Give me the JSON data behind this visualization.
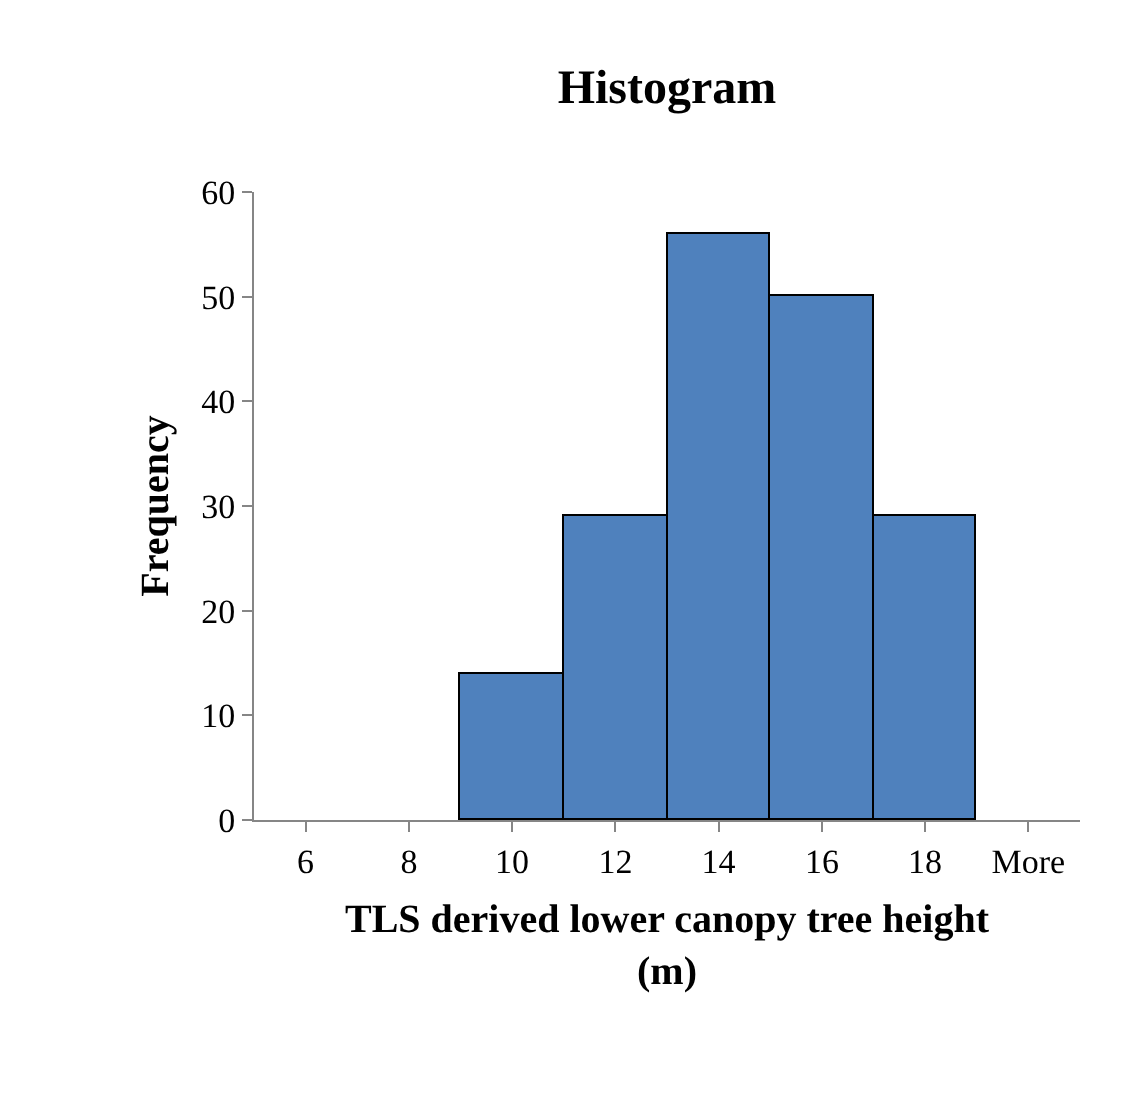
{
  "chart_data": {
    "type": "bar",
    "title": "Histogram",
    "xlabel": "TLS derived lower canopy tree height (m)",
    "ylabel": "Frequency",
    "categories": [
      "6",
      "8",
      "10",
      "12",
      "14",
      "16",
      "18",
      "More"
    ],
    "values": [
      0,
      0,
      14,
      29,
      56,
      50,
      29,
      0
    ],
    "color": "#4f81bd",
    "ylim": [
      0,
      60
    ],
    "yticks": [
      0,
      10,
      20,
      30,
      40,
      50,
      60
    ],
    "grid": false
  }
}
